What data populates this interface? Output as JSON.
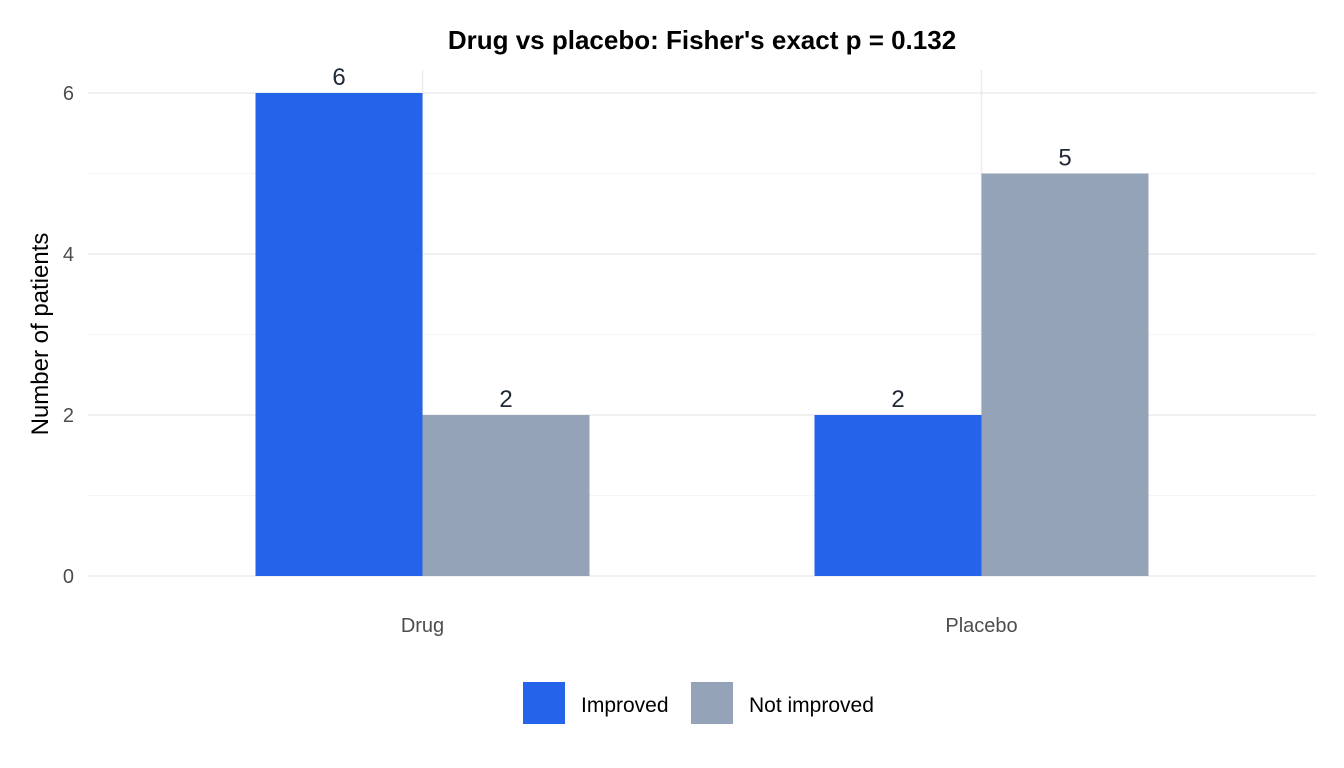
{
  "chart_data": {
    "type": "bar",
    "title": "Drug vs placebo: Fisher's exact p = 0.132",
    "xlabel": "",
    "ylabel": "Number of patients",
    "categories": [
      "Drug",
      "Placebo"
    ],
    "series": [
      {
        "name": "Improved",
        "values": [
          6,
          2
        ],
        "color": "#2563eb"
      },
      {
        "name": "Not improved",
        "values": [
          2,
          5
        ],
        "color": "#94a3b8"
      }
    ],
    "ylim": [
      0,
      6.0
    ],
    "yticks": [
      0,
      2,
      4,
      6
    ],
    "grid": true,
    "legend_position": "bottom"
  }
}
